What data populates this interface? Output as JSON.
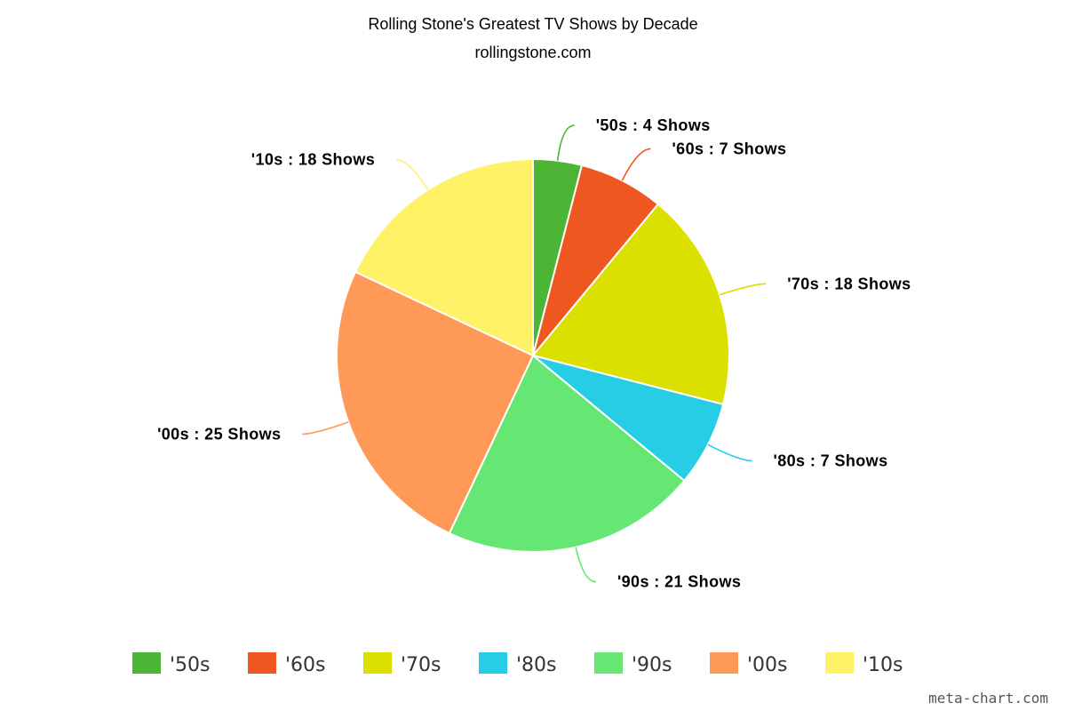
{
  "chart_data": {
    "type": "pie",
    "title": "Rolling Stone's Greatest TV Shows by Decade",
    "subtitle": "rollingstone.com",
    "unit_label": "Shows",
    "label_separator": " : ",
    "slices": [
      {
        "name": "'50s",
        "value": 4,
        "color": "#4db535"
      },
      {
        "name": "'60s",
        "value": 7,
        "color": "#ee571f"
      },
      {
        "name": "'70s",
        "value": 18,
        "color": "#dce000"
      },
      {
        "name": "'80s",
        "value": 7,
        "color": "#26cde4"
      },
      {
        "name": "'90s",
        "value": 21,
        "color": "#66e673"
      },
      {
        "name": "'00s",
        "value": 25,
        "color": "#ff9957"
      },
      {
        "name": "'10s",
        "value": 18,
        "color": "#fff266"
      }
    ],
    "legend_position": "bottom"
  },
  "credit": "meta-chart.com"
}
